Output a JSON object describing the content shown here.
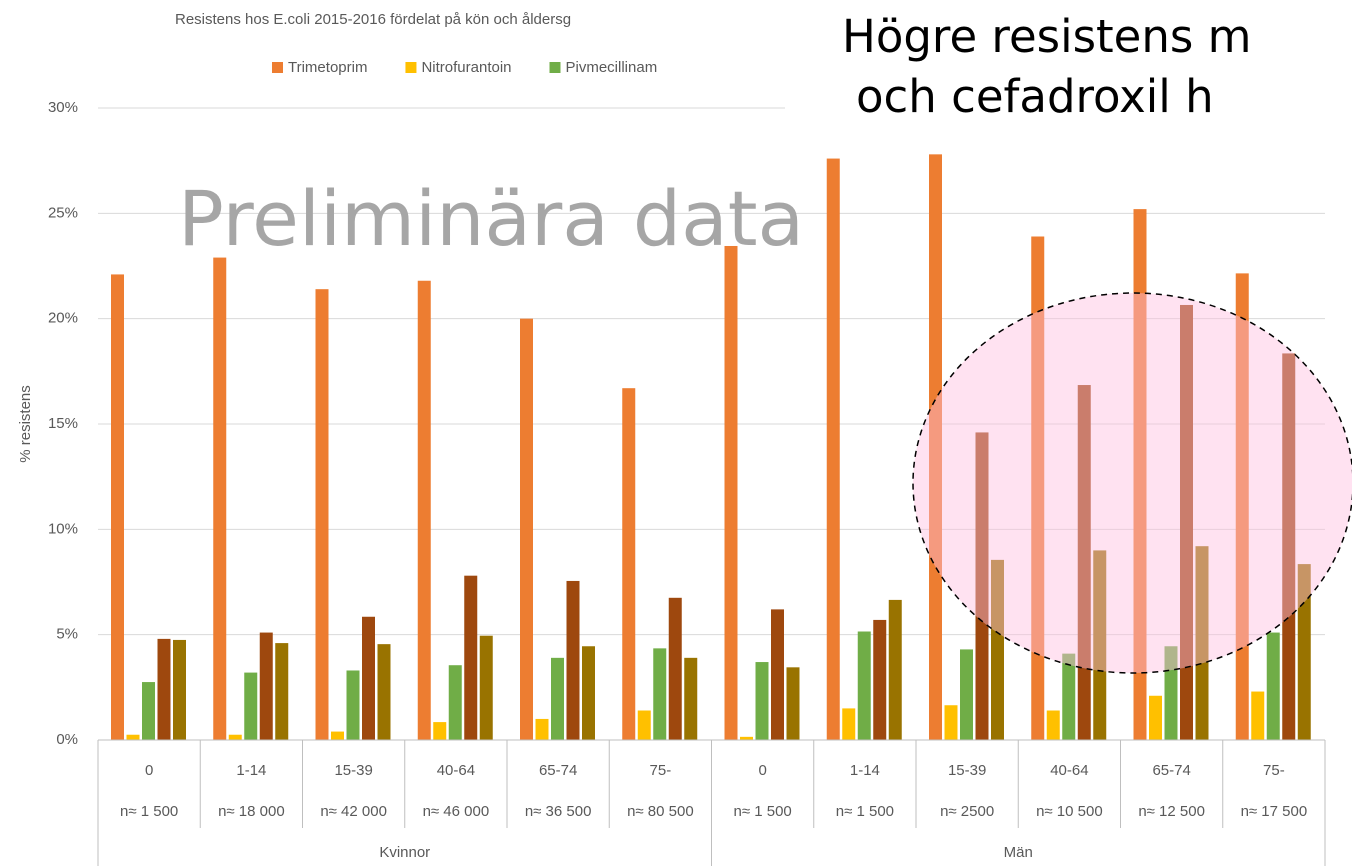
{
  "heading": [
    "Högre resistens m",
    "och cefadroxil h"
  ],
  "watermark": "Preliminära data",
  "chart_data": {
    "type": "bar",
    "title": "Resistens hos E.coli 2015-2016 fördelat på kön och åldersg",
    "y_label": "% resistens",
    "categories": [
      "0",
      "1-14",
      "15-39",
      "40-64",
      "65-74",
      "75-",
      "0",
      "1-14",
      "15-39",
      "40-64",
      "65-74",
      "75-"
    ],
    "sublabels": [
      "n≈ 1 500",
      "n≈ 18 000",
      "n≈ 42 000",
      "n≈ 46 000",
      "n≈ 36 500",
      "n≈ 80 500",
      "n≈ 1 500",
      "n≈ 1 500",
      "n≈ 2500",
      "n≈ 10 500",
      "n≈ 12 500",
      "n≈ 17 500"
    ],
    "groups": [
      "Kvinnor",
      "Män"
    ],
    "series": [
      {
        "name": "Trimetoprim",
        "color": "#ed7d31",
        "values": [
          22.1,
          22.9,
          21.4,
          21.8,
          20.0,
          16.7,
          23.45,
          27.6,
          27.8,
          23.9,
          25.2,
          22.15
        ]
      },
      {
        "name": "Nitrofurantoin",
        "color": "#ffc000",
        "values": [
          0.25,
          0.25,
          0.4,
          0.85,
          1.0,
          1.4,
          0.15,
          1.5,
          1.65,
          1.4,
          2.1,
          2.3
        ]
      },
      {
        "name": "Pivmecillinam",
        "color": "#70ad47",
        "values": [
          2.75,
          3.2,
          3.3,
          3.55,
          3.9,
          4.35,
          3.7,
          5.15,
          4.3,
          4.1,
          4.45,
          5.1
        ]
      },
      {
        "color": "#9e480e",
        "values": [
          4.8,
          5.1,
          5.85,
          7.8,
          7.55,
          6.75,
          6.2,
          5.7,
          14.6,
          16.85,
          20.65,
          18.35
        ]
      },
      {
        "color": "#997300",
        "values": [
          4.75,
          4.6,
          4.55,
          4.95,
          4.45,
          3.9,
          3.45,
          6.65,
          8.55,
          9.0,
          9.2,
          8.35
        ]
      }
    ],
    "ylim": [
      0,
      30
    ],
    "yticks": [
      {
        "value": 0,
        "label": "0%"
      },
      {
        "value": 5,
        "label": "5%"
      },
      {
        "value": 10,
        "label": "10%"
      },
      {
        "value": 15,
        "label": "15%"
      },
      {
        "value": 20,
        "label": "20%"
      },
      {
        "value": 25,
        "label": "25%"
      },
      {
        "value": 30,
        "label": "30%"
      }
    ],
    "grid": true
  }
}
